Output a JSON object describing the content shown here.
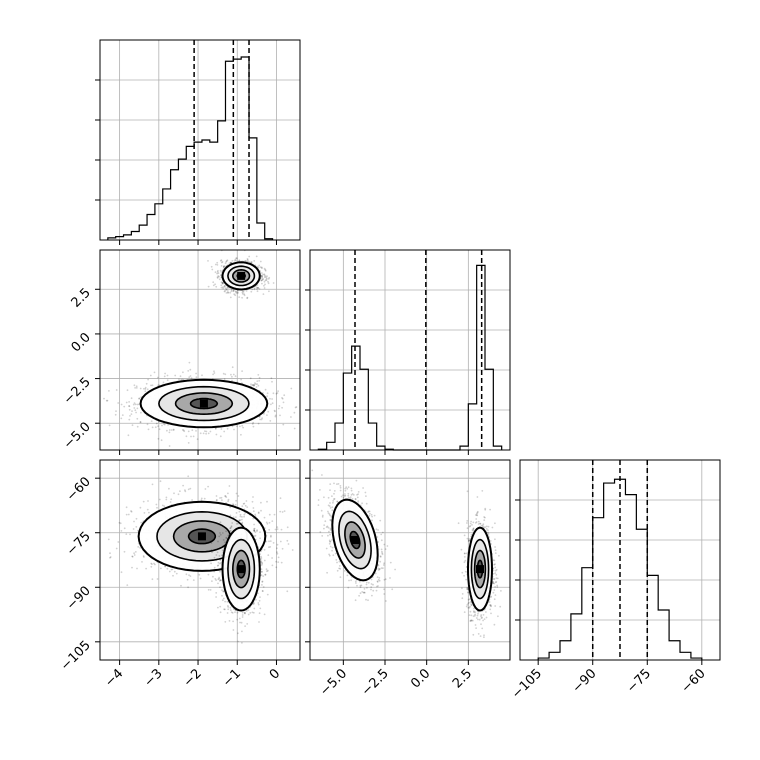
{
  "chart_data": [
    {
      "type": "histogram",
      "panel": "hist-param-1",
      "xlim": [
        -4.5,
        0.6
      ],
      "yticks_labeled": false,
      "grid": true,
      "bins": [
        {
          "x0": -4.3,
          "x1": -4.1,
          "v": 0.5
        },
        {
          "x0": -4.1,
          "x1": -3.9,
          "v": 0.8
        },
        {
          "x0": -3.9,
          "x1": -3.7,
          "v": 1.2
        },
        {
          "x0": -3.7,
          "x1": -3.5,
          "v": 2
        },
        {
          "x0": -3.5,
          "x1": -3.3,
          "v": 3.5
        },
        {
          "x0": -3.3,
          "x1": -3.1,
          "v": 6
        },
        {
          "x0": -3.1,
          "x1": -2.9,
          "v": 8.5
        },
        {
          "x0": -2.9,
          "x1": -2.7,
          "v": 12
        },
        {
          "x0": -2.7,
          "x1": -2.5,
          "v": 16.5
        },
        {
          "x0": -2.5,
          "x1": -2.3,
          "v": 19
        },
        {
          "x0": -2.3,
          "x1": -2.1,
          "v": 22
        },
        {
          "x0": -2.1,
          "x1": -1.9,
          "v": 23
        },
        {
          "x0": -1.9,
          "x1": -1.7,
          "v": 23.5
        },
        {
          "x0": -1.7,
          "x1": -1.5,
          "v": 23
        },
        {
          "x0": -1.5,
          "x1": -1.3,
          "v": 28
        },
        {
          "x0": -1.3,
          "x1": -1.1,
          "v": 42
        },
        {
          "x0": -1.1,
          "x1": -0.9,
          "v": 42.5
        },
        {
          "x0": -0.9,
          "x1": -0.7,
          "v": 43
        },
        {
          "x0": -0.7,
          "x1": -0.5,
          "v": 24
        },
        {
          "x0": -0.5,
          "x1": -0.3,
          "v": 4
        },
        {
          "x0": -0.3,
          "x1": -0.1,
          "v": 0.3
        }
      ],
      "ymax": 47,
      "quantiles": [
        -2.1,
        -1.1,
        -0.7
      ]
    },
    {
      "type": "histogram",
      "panel": "hist-param-2",
      "xlim": [
        -7.0,
        5.0
      ],
      "yticks_labeled": false,
      "grid": true,
      "bins": [
        {
          "x0": -6.5,
          "x1": -6.0,
          "v": 0.2
        },
        {
          "x0": -6.0,
          "x1": -5.5,
          "v": 2
        },
        {
          "x0": -5.5,
          "x1": -5.0,
          "v": 7
        },
        {
          "x0": -5.0,
          "x1": -4.5,
          "v": 20
        },
        {
          "x0": -4.5,
          "x1": -4.0,
          "v": 27
        },
        {
          "x0": -4.0,
          "x1": -3.5,
          "v": 21
        },
        {
          "x0": -3.5,
          "x1": -3.0,
          "v": 7
        },
        {
          "x0": -3.0,
          "x1": -2.5,
          "v": 1
        },
        {
          "x0": -2.5,
          "x1": -2.0,
          "v": 0.2
        },
        {
          "x0": 2.0,
          "x1": 2.5,
          "v": 1
        },
        {
          "x0": 2.5,
          "x1": 3.0,
          "v": 12
        },
        {
          "x0": 3.0,
          "x1": 3.5,
          "v": 48
        },
        {
          "x0": 3.5,
          "x1": 4.0,
          "v": 21
        },
        {
          "x0": 4.0,
          "x1": 4.5,
          "v": 1
        }
      ],
      "ymax": 52,
      "quantiles": [
        -4.3,
        -0.05,
        3.3
      ]
    },
    {
      "type": "histogram",
      "panel": "hist-param-3",
      "xlim": [
        -110,
        -55
      ],
      "xticks": [
        "−105",
        "−90",
        "−75",
        "−60"
      ],
      "xtick_values": [
        -105,
        -90,
        -75,
        -60
      ],
      "yticks_labeled": false,
      "grid": true,
      "bins": [
        {
          "x0": -105,
          "x1": -102,
          "v": 0.5
        },
        {
          "x0": -102,
          "x1": -99,
          "v": 2
        },
        {
          "x0": -99,
          "x1": -96,
          "v": 5
        },
        {
          "x0": -96,
          "x1": -93,
          "v": 12
        },
        {
          "x0": -93,
          "x1": -90,
          "v": 24
        },
        {
          "x0": -90,
          "x1": -87,
          "v": 37
        },
        {
          "x0": -87,
          "x1": -84,
          "v": 46
        },
        {
          "x0": -84,
          "x1": -81,
          "v": 47
        },
        {
          "x0": -81,
          "x1": -78,
          "v": 43
        },
        {
          "x0": -78,
          "x1": -75,
          "v": 34
        },
        {
          "x0": -75,
          "x1": -72,
          "v": 22
        },
        {
          "x0": -72,
          "x1": -69,
          "v": 13
        },
        {
          "x0": -69,
          "x1": -66,
          "v": 5
        },
        {
          "x0": -66,
          "x1": -63,
          "v": 2
        },
        {
          "x0": -63,
          "x1": -60,
          "v": 0.5
        }
      ],
      "ymax": 52,
      "quantiles": [
        -90,
        -82.5,
        -75
      ]
    },
    {
      "type": "scatter",
      "panel": "corner-p2-vs-p1",
      "xlim": [
        -4.5,
        0.6
      ],
      "ylim": [
        -6.5,
        4.7
      ],
      "yticks": [
        "2.5",
        "0.0",
        "−2.5",
        "−5.0"
      ],
      "ytick_values": [
        2.5,
        0.0,
        -2.5,
        -5.0
      ],
      "grid": true,
      "clusters": [
        {
          "cx": -1.85,
          "cy": -3.9,
          "sx": 0.85,
          "sy": 0.7,
          "weight": 0.5
        },
        {
          "cx": -0.9,
          "cy": 3.25,
          "sx": 0.25,
          "sy": 0.4,
          "weight": 0.5
        }
      ]
    },
    {
      "type": "scatter",
      "panel": "corner-p3-vs-p1",
      "xlim": [
        -4.5,
        0.6
      ],
      "ylim": [
        -110,
        -55
      ],
      "xticks": [
        "−4",
        "−3",
        "−2",
        "−1",
        "0"
      ],
      "xtick_values": [
        -4,
        -3,
        -2,
        -1,
        0
      ],
      "yticks": [
        "−60",
        "−75",
        "−90",
        "−105"
      ],
      "ytick_values": [
        -60,
        -75,
        -90,
        -105
      ],
      "grid": true,
      "clusters": [
        {
          "cx": -1.9,
          "cy": -76,
          "sx": 0.85,
          "sy": 5,
          "weight": 0.5
        },
        {
          "cx": -0.9,
          "cy": -85,
          "sx": 0.25,
          "sy": 6,
          "weight": 0.5
        }
      ]
    },
    {
      "type": "scatter",
      "panel": "corner-p3-vs-p2",
      "xlim": [
        -7.0,
        5.0
      ],
      "ylim": [
        -110,
        -55
      ],
      "xticks": [
        "−5.0",
        "−2.5",
        "0.0",
        "2.5"
      ],
      "xtick_values": [
        -5.0,
        -2.5,
        0.0,
        2.5
      ],
      "grid": true,
      "clusters": [
        {
          "cx": -4.3,
          "cy": -77,
          "sx": 0.65,
          "sy": 6,
          "weight": 0.5,
          "tilt": -0.55
        },
        {
          "cx": 3.2,
          "cy": -85,
          "sx": 0.38,
          "sy": 6,
          "weight": 0.5
        }
      ]
    }
  ]
}
